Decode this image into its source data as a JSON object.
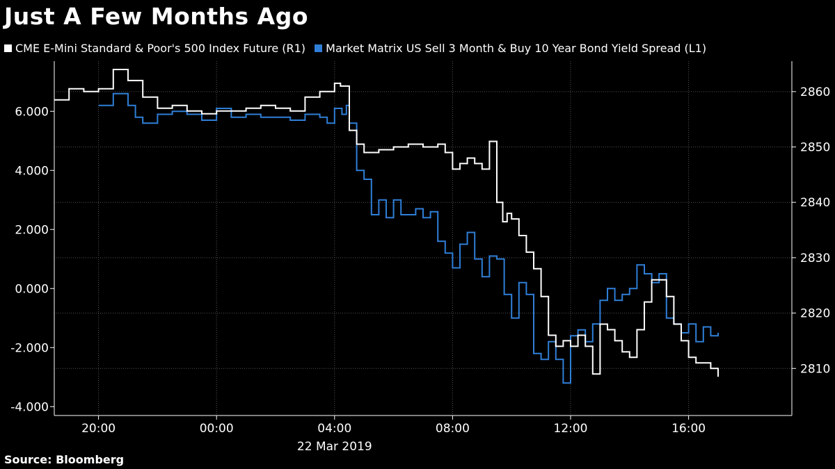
{
  "title": "Just A Few Months Ago",
  "source": "Source:  Bloomberg",
  "colors": {
    "spx": "#ffffff",
    "spread": "#2f7fd8",
    "grid": "#555555",
    "axis": "#ffffff",
    "background": "#000000"
  },
  "chart_data": {
    "type": "line",
    "title": "Just A Few Months Ago",
    "date_label": "22 Mar 2019",
    "x_unit": "hours relative to 00:00, 22 Mar 2019",
    "x_range": [
      -5.5,
      19.5
    ],
    "x_ticks": [
      {
        "x": -4,
        "label": "20:00"
      },
      {
        "x": 0,
        "label": "00:00"
      },
      {
        "x": 4,
        "label": "04:00"
      },
      {
        "x": 8,
        "label": "08:00"
      },
      {
        "x": 12,
        "label": "12:00"
      },
      {
        "x": 16,
        "label": "16:00"
      }
    ],
    "left_axis": {
      "range": [
        -4.3,
        7.7
      ],
      "ticks": [
        6,
        4,
        2,
        0,
        -2,
        -4
      ],
      "tick_labels": [
        "6.000",
        "4.000",
        "2.000",
        "0.000",
        "-2.000",
        "-4.000"
      ]
    },
    "right_axis": {
      "range": [
        2801.5,
        2865.5
      ],
      "ticks": [
        2860,
        2850,
        2840,
        2830,
        2820,
        2810
      ],
      "tick_labels": [
        "2860",
        "2850",
        "2840",
        "2830",
        "2820",
        "2810"
      ]
    },
    "grid": true,
    "legend": "top-left",
    "series": [
      {
        "name": "CME E-Mini Standard & Poor's 500 Index Future  (R1)",
        "axis": "right",
        "color": "#ffffff",
        "x": [
          -5.5,
          -5.0,
          -4.5,
          -4.0,
          -3.5,
          -3.0,
          -2.5,
          -2.0,
          -1.5,
          -1.0,
          -0.5,
          0.0,
          0.5,
          1.0,
          1.5,
          2.0,
          2.5,
          3.0,
          3.5,
          4.0,
          4.2,
          4.35,
          4.5,
          4.75,
          5.0,
          5.5,
          6.0,
          6.5,
          7.0,
          7.5,
          7.75,
          8.0,
          8.25,
          8.5,
          8.75,
          9.0,
          9.25,
          9.5,
          9.7,
          9.85,
          10.0,
          10.25,
          10.5,
          10.75,
          11.0,
          11.25,
          11.5,
          11.75,
          12.0,
          12.25,
          12.5,
          12.75,
          13.0,
          13.25,
          13.5,
          13.75,
          14.0,
          14.25,
          14.5,
          14.75,
          15.0,
          15.25,
          15.5,
          15.75,
          16.0,
          16.25,
          16.5,
          16.75,
          17.0
        ],
        "y": [
          2858.5,
          2860.5,
          2860.0,
          2860.5,
          2864.0,
          2862.0,
          2859.0,
          2857.0,
          2857.5,
          2856.5,
          2856.0,
          2856.5,
          2856.5,
          2857.0,
          2857.5,
          2857.0,
          2856.5,
          2859.0,
          2860.0,
          2861.5,
          2861.0,
          2861.0,
          2853.0,
          2850.5,
          2849.0,
          2849.5,
          2850.0,
          2850.5,
          2850.0,
          2850.5,
          2849.0,
          2846.0,
          2847.0,
          2848.0,
          2847.0,
          2846.0,
          2851.0,
          2840.0,
          2836.5,
          2838.0,
          2837.0,
          2834.0,
          2831.0,
          2828.0,
          2823.0,
          2816.0,
          2814.0,
          2815.0,
          2814.0,
          2816.0,
          2814.0,
          2809.0,
          2818.0,
          2817.0,
          2815.0,
          2813.0,
          2812.0,
          2817.0,
          2822.0,
          2826.0,
          2826.0,
          2823.0,
          2818.0,
          2815.0,
          2812.0,
          2811.0,
          2811.0,
          2810.0,
          2808.5
        ]
      },
      {
        "name": "Market Matrix US Sell 3 Month & Buy 10 Year Bond Yield Spread  (L1)",
        "axis": "left",
        "color": "#2f7fd8",
        "x": [
          -4.0,
          -3.5,
          -3.0,
          -2.75,
          -2.5,
          -2.0,
          -1.5,
          -1.0,
          -0.5,
          0.0,
          0.5,
          1.0,
          1.5,
          2.0,
          2.5,
          3.0,
          3.5,
          3.75,
          4.0,
          4.25,
          4.4,
          4.5,
          4.75,
          5.0,
          5.25,
          5.5,
          5.75,
          6.0,
          6.25,
          6.5,
          6.75,
          7.0,
          7.25,
          7.5,
          7.75,
          8.0,
          8.25,
          8.5,
          8.75,
          9.0,
          9.25,
          9.5,
          9.75,
          10.0,
          10.25,
          10.5,
          10.75,
          11.0,
          11.25,
          11.5,
          11.75,
          12.0,
          12.25,
          12.5,
          12.75,
          13.0,
          13.25,
          13.5,
          13.75,
          14.0,
          14.25,
          14.5,
          14.75,
          15.0,
          15.25,
          15.5,
          15.75,
          16.0,
          16.25,
          16.5,
          16.75,
          17.0
        ],
        "y": [
          6.2,
          6.6,
          6.2,
          5.8,
          5.6,
          5.9,
          6.0,
          5.9,
          5.7,
          6.1,
          5.8,
          5.9,
          5.8,
          5.8,
          5.7,
          5.9,
          5.8,
          5.6,
          6.1,
          5.9,
          6.2,
          5.6,
          4.0,
          3.7,
          2.5,
          3.0,
          2.4,
          3.0,
          2.5,
          2.5,
          2.7,
          2.4,
          2.6,
          1.6,
          1.2,
          0.7,
          1.5,
          1.9,
          1.0,
          0.4,
          1.1,
          1.0,
          -0.2,
          -1.0,
          0.2,
          -0.2,
          -2.2,
          -2.4,
          -1.8,
          -2.4,
          -3.2,
          -1.6,
          -1.4,
          -1.8,
          -1.2,
          -0.4,
          0.0,
          -0.4,
          -0.2,
          0.0,
          0.8,
          0.5,
          0.2,
          0.5,
          -1.0,
          -1.2,
          -1.5,
          -1.2,
          -1.8,
          -1.3,
          -1.6,
          -1.5
        ]
      }
    ]
  }
}
